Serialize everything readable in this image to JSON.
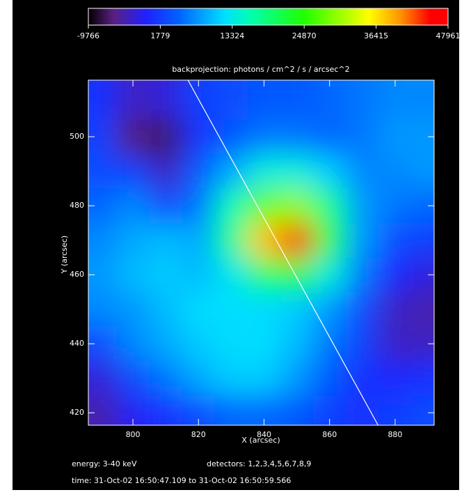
{
  "chart_data": {
    "type": "heatmap",
    "title": "backprojection: photons / cm^2 / s / arcsec^2",
    "x_label": "X (arcsec)",
    "y_label": "Y (arcsec)",
    "xlim": [
      786.4,
      891.9
    ],
    "ylim": [
      416.4,
      516.4
    ],
    "xticks": [
      800,
      820,
      840,
      860,
      880
    ],
    "yticks": [
      420,
      440,
      460,
      480,
      500
    ],
    "x": [
      790,
      800,
      810,
      820,
      830,
      840,
      850,
      860,
      870,
      880,
      890
    ],
    "y": [
      510,
      500,
      490,
      480,
      470,
      460,
      450,
      440,
      430,
      420
    ],
    "z": [
      [
        1000,
        -3000,
        -2000,
        2000,
        3000,
        4000,
        4000,
        5000,
        6000,
        7000,
        7000
      ],
      [
        2000,
        -6000,
        -7000,
        1000,
        4000,
        6000,
        6000,
        5000,
        6000,
        8000,
        8000
      ],
      [
        3000,
        2000,
        -3000,
        4000,
        9000,
        14000,
        14000,
        11000,
        7000,
        7000,
        8000
      ],
      [
        5000,
        7000,
        3000,
        6000,
        16000,
        28000,
        30000,
        18000,
        8000,
        6000,
        5000
      ],
      [
        7000,
        9000,
        10000,
        9000,
        18000,
        38000,
        46000,
        22000,
        8000,
        3000,
        2000
      ],
      [
        8000,
        10000,
        11000,
        10000,
        13000,
        20000,
        22000,
        14000,
        6000,
        0,
        -2000
      ],
      [
        7000,
        8000,
        10000,
        12000,
        12000,
        12000,
        11000,
        8000,
        3000,
        -3000,
        -4000
      ],
      [
        3000,
        7000,
        9000,
        11000,
        12000,
        12000,
        10000,
        6000,
        2000,
        -3000,
        -3000
      ],
      [
        -2000,
        3000,
        6000,
        9000,
        11000,
        11000,
        8000,
        4000,
        1000,
        0,
        1000
      ],
      [
        -4000,
        -1000,
        1000,
        3000,
        5000,
        5000,
        4000,
        2000,
        1000,
        2000,
        3000
      ]
    ],
    "colorbar": {
      "lim": [
        -9766,
        47961
      ],
      "ticks": [
        -9766,
        1779,
        13324,
        24870,
        36415,
        47961
      ]
    },
    "limb": {
      "x": [
        816.8,
        874.8
      ],
      "y": [
        516.4,
        416.4
      ],
      "color": "#ffffff"
    },
    "annotations": [
      "energy: 3-40 keV",
      "detectors: 1,2,3,4,5,6,7,8,9",
      "time: 31-Oct-02 16:50:47.109 to 31-Oct-02 16:50:59.566"
    ]
  }
}
